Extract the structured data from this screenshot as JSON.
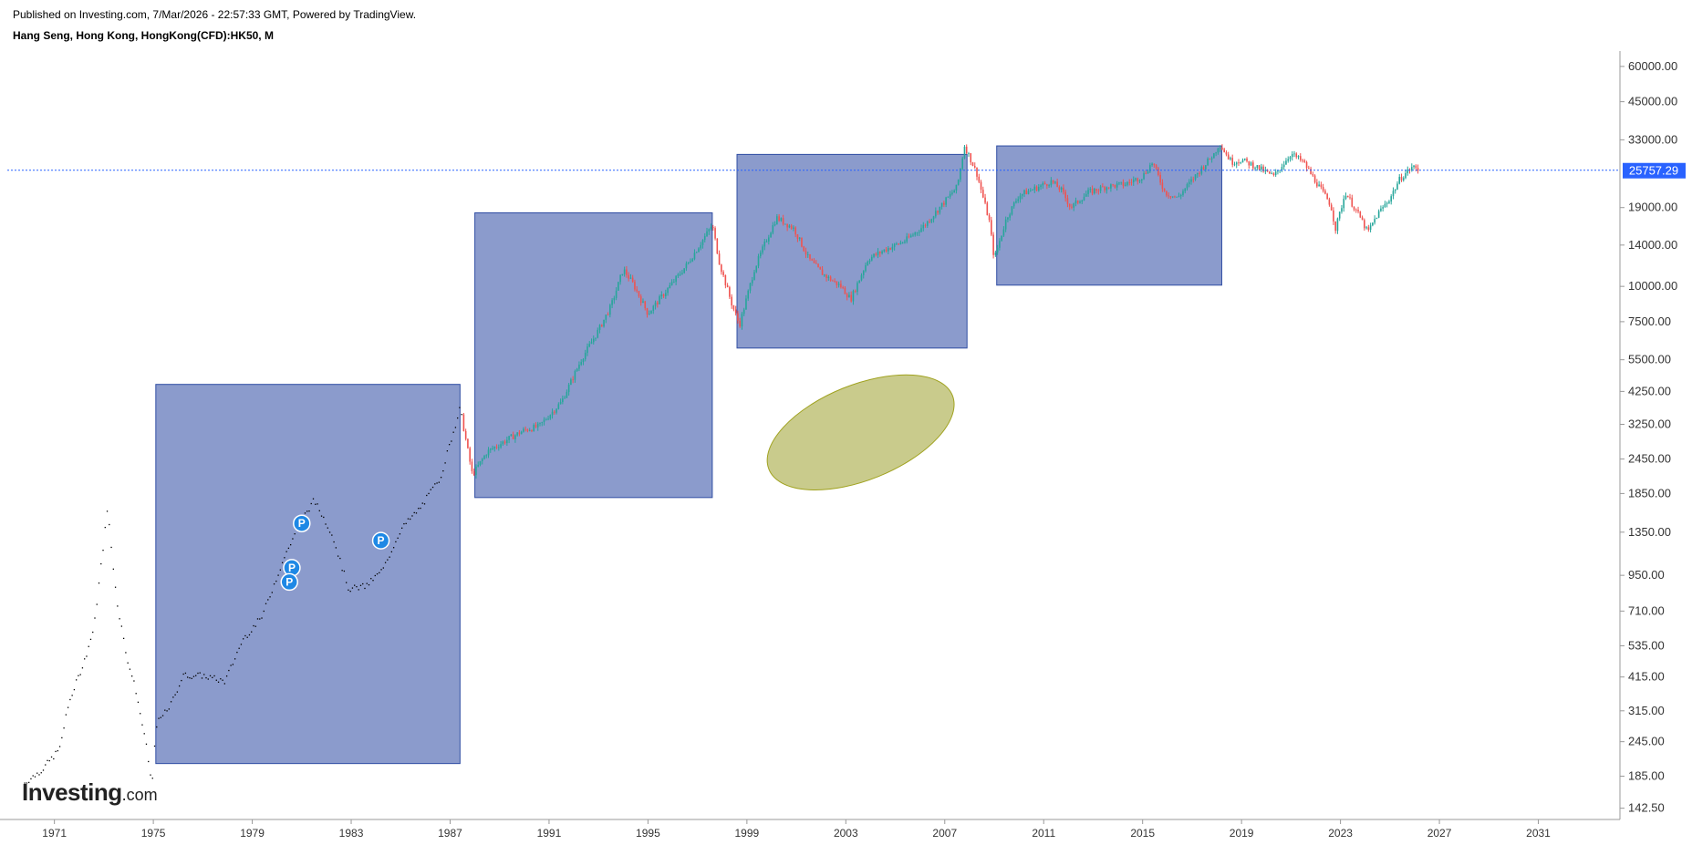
{
  "header": {
    "published": "Published on Investing.com, 7/Mar/2026 - 22:57:33 GMT, Powered by TradingView.",
    "symbol": "Hang Seng, Hong Kong, HongKong(CFD):HK50, M"
  },
  "logo": {
    "main": "Investing",
    "suffix": ".com"
  },
  "chart_data": {
    "type": "candlestick",
    "title": "",
    "xlabel": "",
    "ylabel": "",
    "y_scale": "log",
    "ylim": [
      130,
      68000
    ],
    "xlim": [
      1968.8,
      2034.3
    ],
    "x_ticks": [
      "1971",
      "1975",
      "1979",
      "1983",
      "1987",
      "1991",
      "1995",
      "1999",
      "2003",
      "2007",
      "2011",
      "2015",
      "2019",
      "2023",
      "2027",
      "2031"
    ],
    "y_ticks": [
      "60000.00",
      "45000.00",
      "33000.00",
      "19000.00",
      "14000.00",
      "10000.00",
      "7500.00",
      "5500.00",
      "4250.00",
      "3250.00",
      "2450.00",
      "1850.00",
      "1350.00",
      "950.00",
      "710.00",
      "535.00",
      "415.00",
      "315.00",
      "245.00",
      "185.00",
      "142.50"
    ],
    "last_price": 25757.29,
    "last_price_label": "25757.29",
    "colors": {
      "up": "#26a69a",
      "down": "#ef5350",
      "early_dots": "#000000",
      "box_fill": "#8b9bcc",
      "box_stroke": "#2f4da3",
      "ellipse_fill": "#c9cb8c",
      "ellipse_stroke": "#a0a21f",
      "price_line": "#2962ff",
      "marker": "#1e88e5"
    },
    "series_anchors": [
      [
        1969.8,
        175
      ],
      [
        1970.5,
        195
      ],
      [
        1971.2,
        230
      ],
      [
        1971.6,
        340
      ],
      [
        1972.2,
        470
      ],
      [
        1972.6,
        620
      ],
      [
        1973.15,
        1650
      ],
      [
        1973.5,
        800
      ],
      [
        1973.9,
        500
      ],
      [
        1974.3,
        370
      ],
      [
        1974.7,
        240
      ],
      [
        1974.95,
        170
      ],
      [
        1975.1,
        280
      ],
      [
        1975.7,
        330
      ],
      [
        1976.2,
        420
      ],
      [
        1977.0,
        420
      ],
      [
        1977.9,
        400
      ],
      [
        1978.6,
        560
      ],
      [
        1979.4,
        680
      ],
      [
        1980.2,
        1050
      ],
      [
        1980.9,
        1450
      ],
      [
        1981.5,
        1750
      ],
      [
        1982.2,
        1350
      ],
      [
        1982.9,
        850
      ],
      [
        1983.6,
        870
      ],
      [
        1984.3,
        1000
      ],
      [
        1985.0,
        1380
      ],
      [
        1985.8,
        1650
      ],
      [
        1986.6,
        2100
      ],
      [
        1987.4,
        3700
      ],
      [
        1987.9,
        2150
      ],
      [
        1988.5,
        2600
      ],
      [
        1989.4,
        2900
      ],
      [
        1990.0,
        3100
      ],
      [
        1990.6,
        3200
      ],
      [
        1991.5,
        3900
      ],
      [
        1992.3,
        5500
      ],
      [
        1993.0,
        7000
      ],
      [
        1993.5,
        8500
      ],
      [
        1994.0,
        11500
      ],
      [
        1994.4,
        10200
      ],
      [
        1995.0,
        8000
      ],
      [
        1995.8,
        9800
      ],
      [
        1996.6,
        12000
      ],
      [
        1997.6,
        16500
      ],
      [
        1997.9,
        12000
      ],
      [
        1998.4,
        8600
      ],
      [
        1998.7,
        7300
      ],
      [
        1999.3,
        11500
      ],
      [
        1999.7,
        14000
      ],
      [
        2000.2,
        17500
      ],
      [
        2000.9,
        16000
      ],
      [
        2001.5,
        12500
      ],
      [
        2002.1,
        11000
      ],
      [
        2002.8,
        10000
      ],
      [
        2003.2,
        9000
      ],
      [
        2003.9,
        12500
      ],
      [
        2004.6,
        13500
      ],
      [
        2005.4,
        14500
      ],
      [
        2006.2,
        16500
      ],
      [
        2006.9,
        19500
      ],
      [
        2007.5,
        22500
      ],
      [
        2007.8,
        31500
      ],
      [
        2008.3,
        25000
      ],
      [
        2008.8,
        17000
      ],
      [
        2009.0,
        12500
      ],
      [
        2009.5,
        17500
      ],
      [
        2010.0,
        21000
      ],
      [
        2010.8,
        22500
      ],
      [
        2011.3,
        23500
      ],
      [
        2011.7,
        22000
      ],
      [
        2012.1,
        19000
      ],
      [
        2012.8,
        21500
      ],
      [
        2013.5,
        22500
      ],
      [
        2014.3,
        23000
      ],
      [
        2015.0,
        24500
      ],
      [
        2015.4,
        27500
      ],
      [
        2015.9,
        21500
      ],
      [
        2016.4,
        20500
      ],
      [
        2017.2,
        25000
      ],
      [
        2017.9,
        29500
      ],
      [
        2018.1,
        32000
      ],
      [
        2018.6,
        27500
      ],
      [
        2019.0,
        28000
      ],
      [
        2019.6,
        26500
      ],
      [
        2020.3,
        24500
      ],
      [
        2021.0,
        29500
      ],
      [
        2021.5,
        27500
      ],
      [
        2022.0,
        23500
      ],
      [
        2022.6,
        19500
      ],
      [
        2022.8,
        16000
      ],
      [
        2023.2,
        21500
      ],
      [
        2023.8,
        17500
      ],
      [
        2024.1,
        15500
      ],
      [
        2024.5,
        18000
      ],
      [
        2025.0,
        20500
      ],
      [
        2025.4,
        24000
      ],
      [
        2025.9,
        26500
      ],
      [
        2026.2,
        25757.29
      ]
    ],
    "boxes": [
      {
        "x0": 1975.1,
        "x1": 1987.4,
        "y0": 205,
        "y1": 4500
      },
      {
        "x0": 1988.0,
        "x1": 1997.6,
        "y0": 1790,
        "y1": 18200
      },
      {
        "x0": 1998.6,
        "x1": 2007.9,
        "y0": 6050,
        "y1": 29300
      },
      {
        "x0": 2009.1,
        "x1": 2018.2,
        "y0": 10100,
        "y1": 31400
      }
    ],
    "ellipse": {
      "x0": 1999.6,
      "x1": 2007.6,
      "y0": 1950,
      "y1": 4750
    },
    "markers": [
      {
        "label": "P",
        "x": 1981.0,
        "y": 1450
      },
      {
        "label": "P",
        "x": 1980.6,
        "y": 1010
      },
      {
        "label": "P",
        "x": 1980.5,
        "y": 900
      },
      {
        "label": "P",
        "x": 1984.2,
        "y": 1260
      }
    ]
  }
}
